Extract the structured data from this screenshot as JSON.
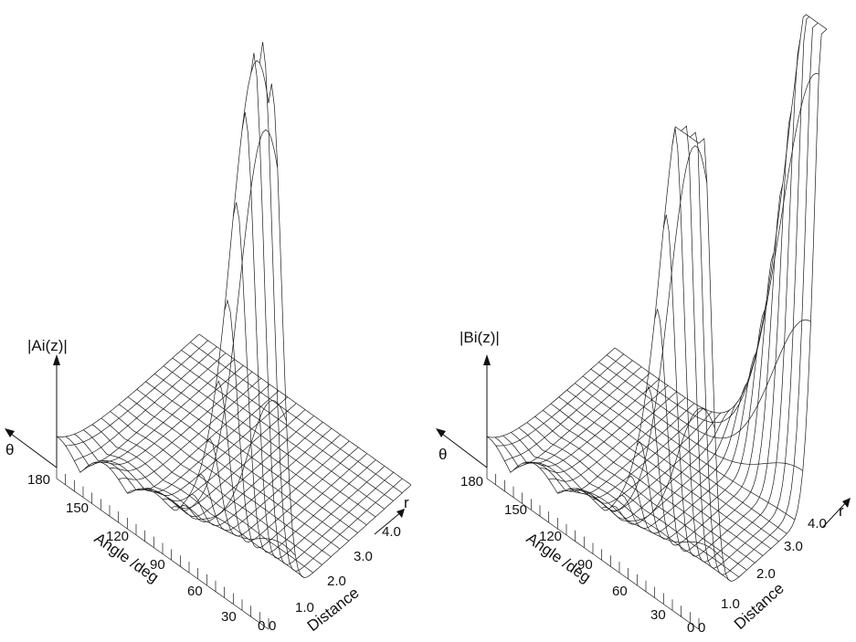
{
  "panels": [
    {
      "id": "ai",
      "ylabel": "|Ai(z)|",
      "theta_label": "θ",
      "r_label": "r",
      "angle_axis_label": "Angle /deg",
      "distance_axis_label": "Distance",
      "angle_ticks": [
        "180",
        "150",
        "120",
        "90",
        "60",
        "30",
        "0"
      ],
      "distance_ticks": [
        "0",
        "1.0",
        "2.0",
        "3.0",
        "4.0"
      ]
    },
    {
      "id": "bi",
      "ylabel": "|Bi(z)|",
      "theta_label": "θ",
      "r_label": "r",
      "angle_axis_label": "Angle /deg",
      "distance_axis_label": "Distance",
      "angle_ticks": [
        "180",
        "150",
        "120",
        "90",
        "60",
        "30",
        "0"
      ],
      "distance_ticks": [
        "0",
        "1.0",
        "2.0",
        "3.0",
        "4.0"
      ]
    }
  ]
}
